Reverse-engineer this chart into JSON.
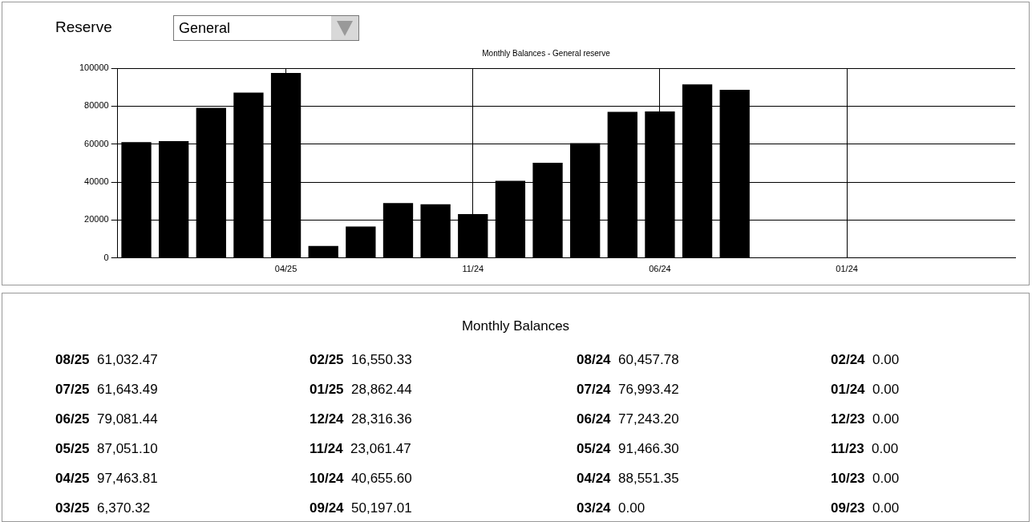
{
  "chart_data": [
    {
      "type": "bar",
      "title": "Monthly Balances - General reserve",
      "annotations": [
        "Reserve",
        "General"
      ],
      "categories": [
        null,
        null,
        null,
        null,
        "04/25",
        null,
        null,
        null,
        null,
        "11/24",
        null,
        null,
        null,
        null,
        "06/24",
        null,
        null,
        null,
        null,
        "01/24",
        null,
        null,
        null,
        null
      ],
      "values": [
        61000,
        61600,
        79100,
        87100,
        97500,
        6400,
        16600,
        28900,
        28300,
        23100,
        40700,
        50200,
        60500,
        77000,
        77200,
        91500,
        88600,
        0,
        0,
        0,
        0,
        0,
        0,
        0
      ],
      "color": "#000000",
      "ylim": [
        0,
        100000
      ],
      "yticks": [
        0,
        20000,
        40000,
        60000,
        80000,
        100000
      ],
      "grid": true
    },
    {
      "type": "other",
      "title": "Monthly Balances",
      "annotations": [
        "08/25",
        "61,032.47",
        "07/25",
        "61,643.49",
        "06/25",
        "79,081.44",
        "05/25",
        "87,051.10",
        "04/25",
        "97,463.81",
        "03/25",
        "6,370.32",
        "02/25",
        "16,550.33",
        "01/25",
        "28,862.44",
        "12/24",
        "28,316.36",
        "11/24",
        "23,061.47",
        "10/24",
        "40,655.60",
        "09/24",
        "50,197.01",
        "08/24",
        "60,457.78",
        "07/24",
        "76,993.42",
        "06/24",
        "77,243.20",
        "05/24",
        "91,466.30",
        "04/24",
        "88,551.35",
        "03/24",
        "0.00",
        "02/24",
        "0.00",
        "01/24",
        "0.00",
        "12/23",
        "0.00",
        "11/23",
        "0.00",
        "10/23",
        "0.00",
        "09/23",
        "0.00"
      ]
    }
  ]
}
